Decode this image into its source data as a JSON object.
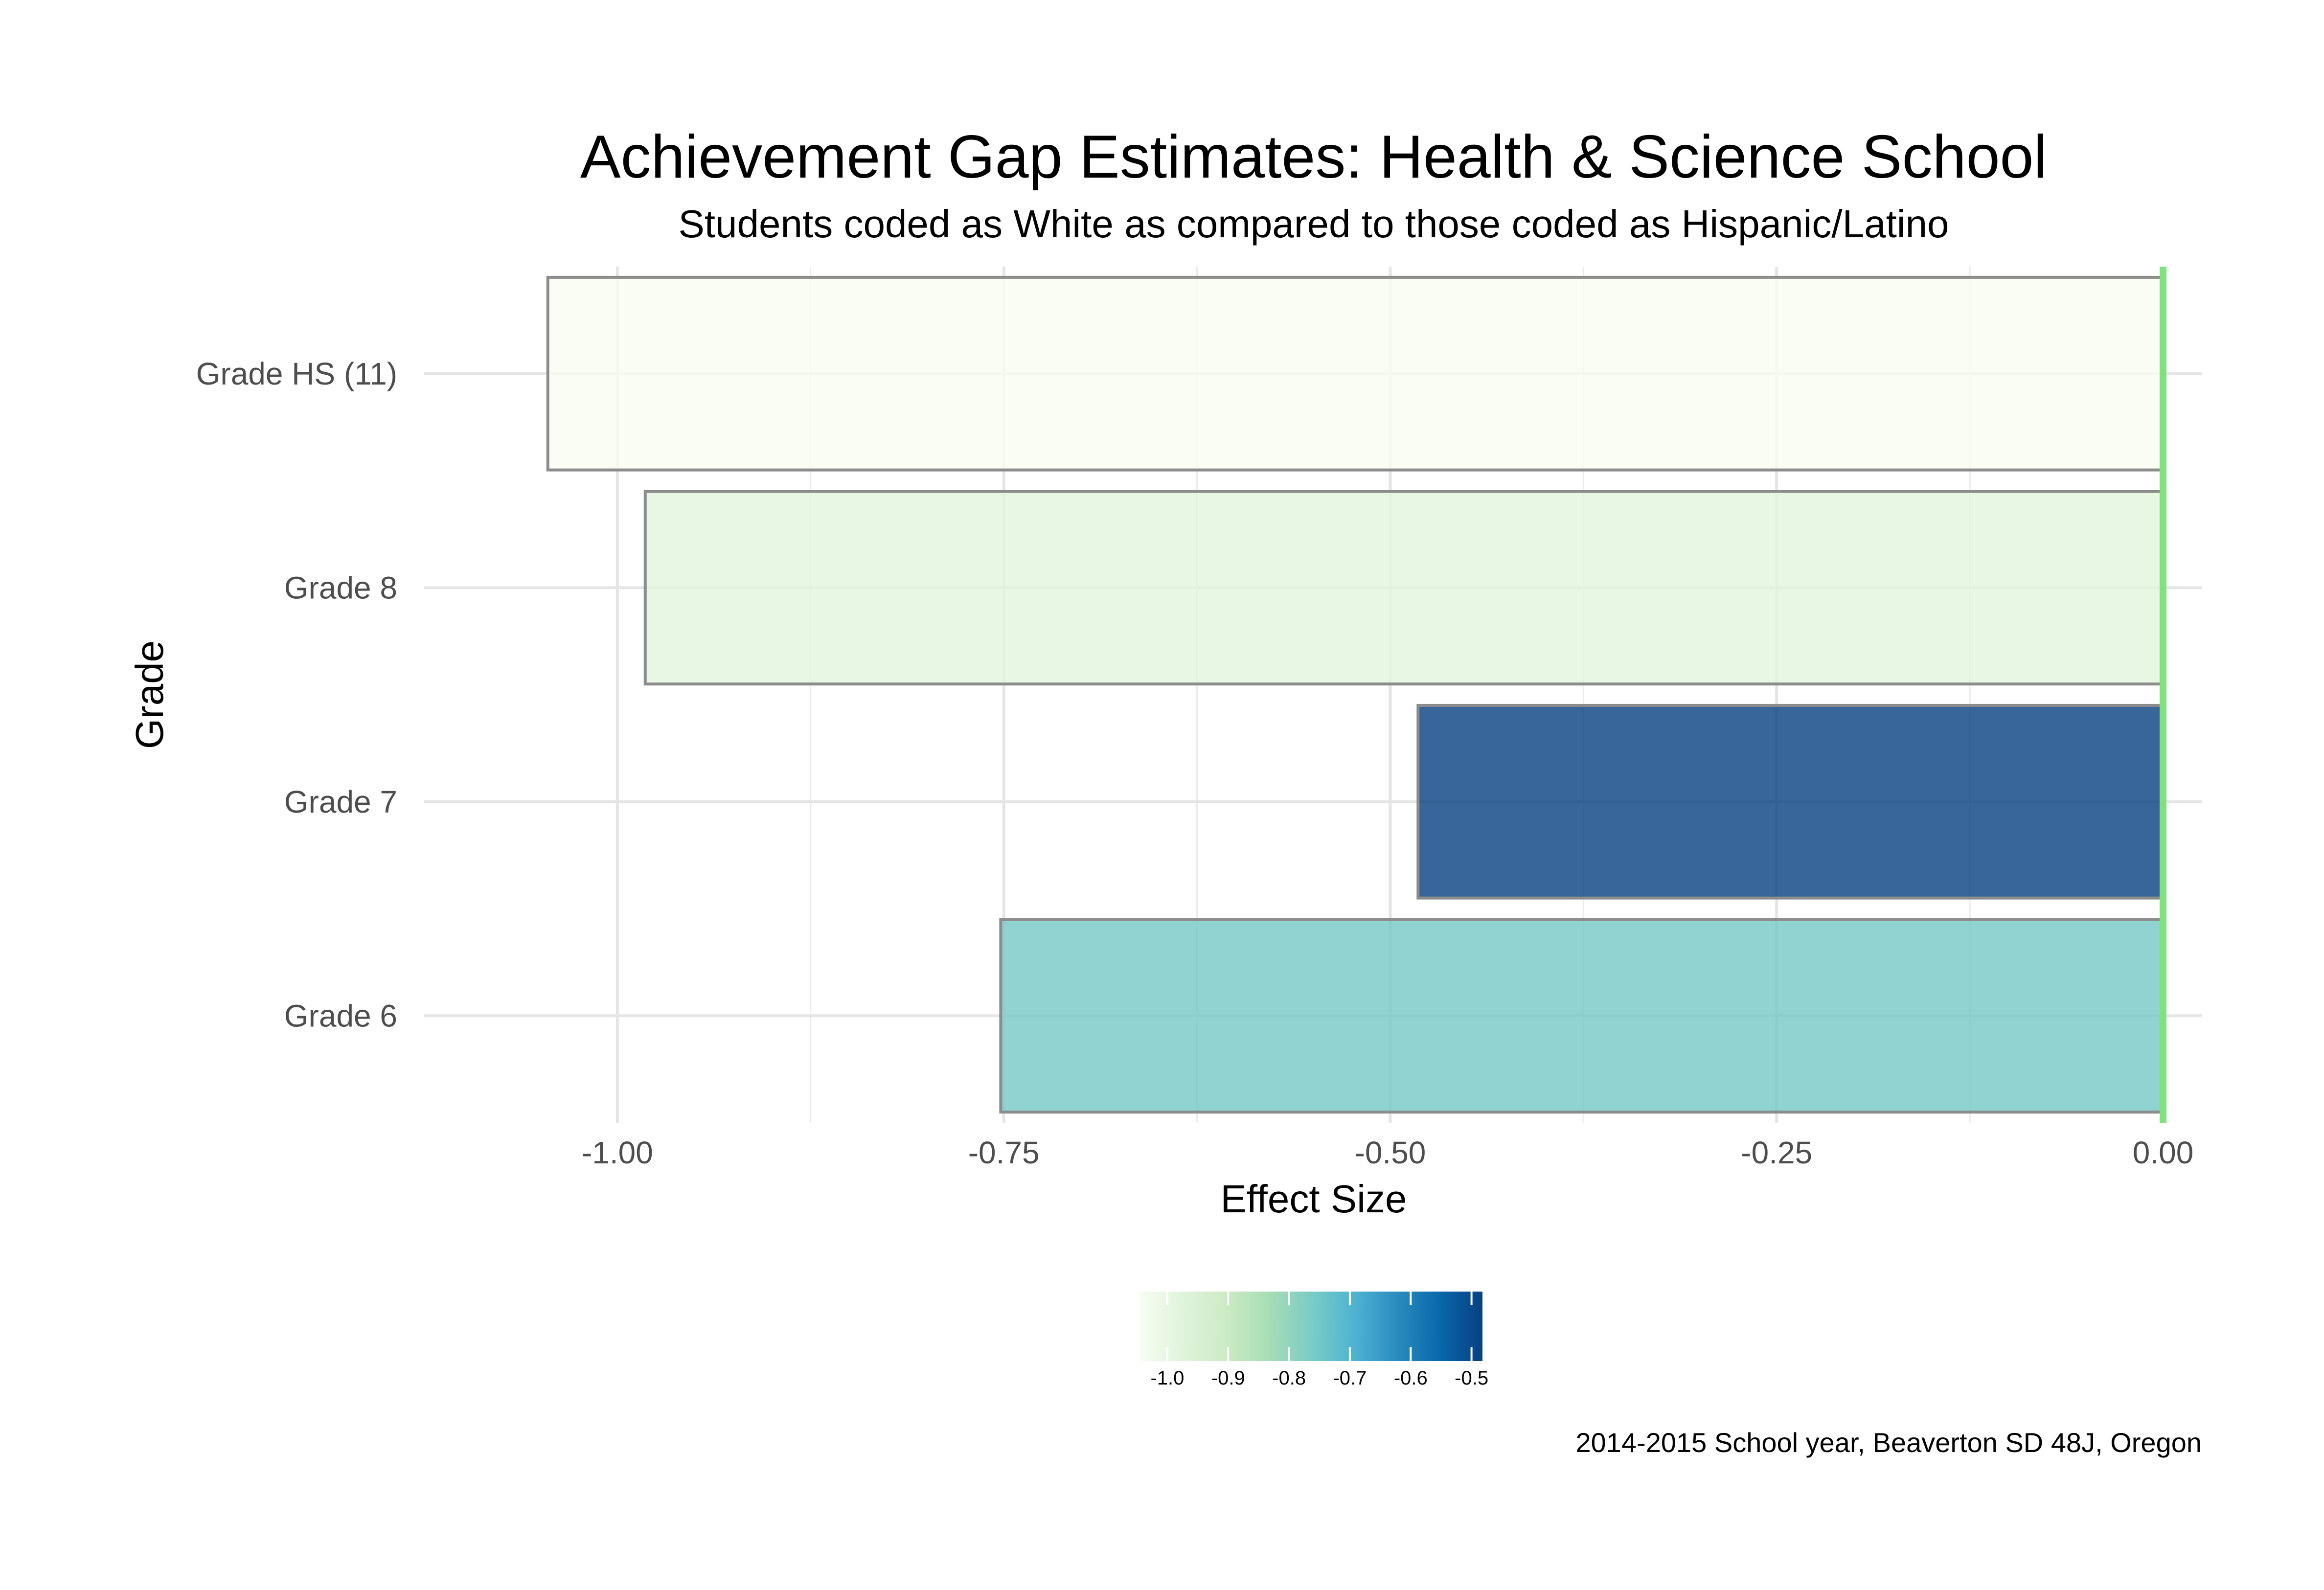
{
  "chart_data": {
    "type": "bar",
    "orientation": "horizontal",
    "title": "Achievement Gap Estimates: Health & Science School",
    "subtitle": "Students coded as White as compared to those coded as Hispanic/Latino",
    "xlabel": "Effect Size",
    "ylabel": "Grade",
    "categories": [
      "Grade HS (11)",
      "Grade 8",
      "Grade 7",
      "Grade 6"
    ],
    "values": [
      -1.045,
      -0.982,
      -0.482,
      -0.752
    ],
    "xlim": [
      -1.125,
      0.025
    ],
    "x_ticks": [
      -1.0,
      -0.75,
      -0.5,
      -0.25,
      0.0
    ],
    "x_tick_labels": [
      "-1.00",
      "-0.75",
      "-0.50",
      "-0.25",
      "0.00"
    ],
    "reference_line": {
      "x": 0.0,
      "color": "#7FE27F"
    },
    "grid": true,
    "legend": {
      "type": "colorbar",
      "position": "bottom",
      "range": [
        -1.045,
        -0.482
      ],
      "ticks": [
        -1.0,
        -0.9,
        -0.8,
        -0.7,
        -0.6,
        -0.5
      ],
      "tick_labels": [
        "-1.0",
        "-0.9",
        "-0.8",
        "-0.7",
        "-0.6",
        "-0.5"
      ],
      "palette": [
        "#F7FCF0",
        "#E0F3DB",
        "#CCEBC5",
        "#A8DDB5",
        "#7BCCC4",
        "#4EB3D3",
        "#2B8CBE",
        "#0868AC",
        "#084081"
      ]
    },
    "bar_outline_color": "#8C8C8C",
    "caption": "2014-2015 School year, Beaverton SD 48J, Oregon"
  }
}
